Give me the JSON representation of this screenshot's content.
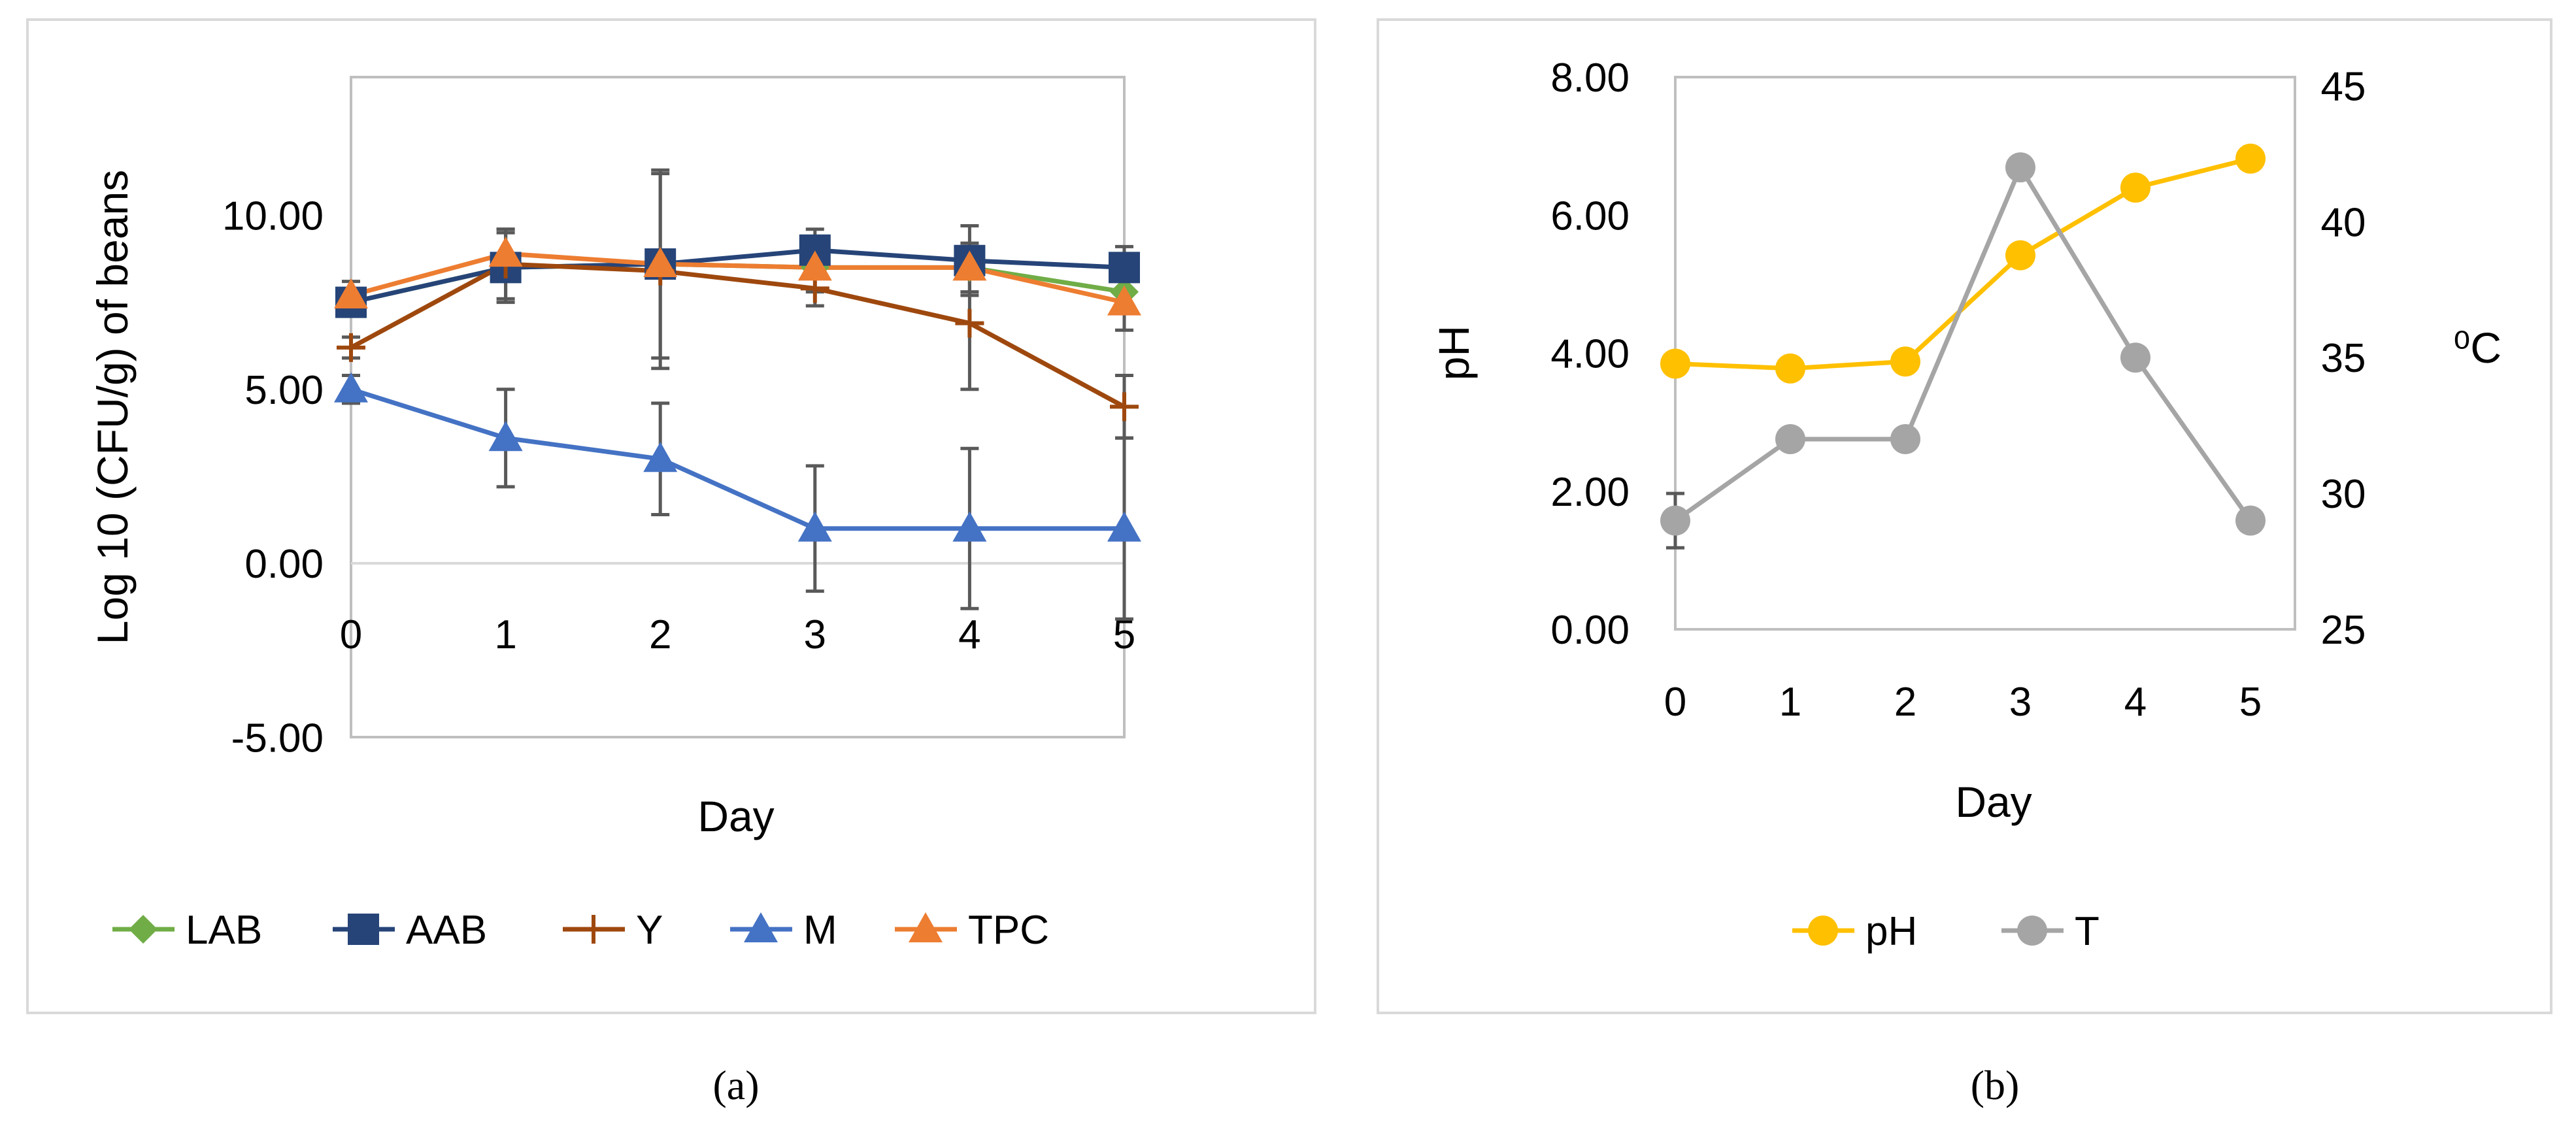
{
  "chart_data": [
    {
      "type": "line",
      "xlabel": "Day",
      "ylabel": "Log 10 (CFU/g) of beans",
      "x": [
        0,
        1,
        2,
        3,
        4,
        5
      ],
      "xticks": [
        "0",
        "1",
        "2",
        "3",
        "4",
        "5"
      ],
      "ylim": [
        -5,
        15
      ],
      "yticks": [
        "-5.00",
        "0.00",
        "5.00",
        "10.00"
      ],
      "grid": false,
      "legend": "bottom",
      "caption": "(a)",
      "series": [
        {
          "name": "LAB",
          "color": "#70AD47",
          "marker": "diamond",
          "values": [
            7.5,
            8.5,
            8.6,
            8.5,
            8.5,
            7.8
          ],
          "err": [
            0,
            0,
            0,
            0,
            0,
            0
          ]
        },
        {
          "name": "AAB",
          "color": "#264478",
          "marker": "square",
          "values": [
            7.5,
            8.5,
            8.6,
            9.0,
            8.7,
            8.5
          ],
          "err": [
            0.3,
            1.0,
            0.4,
            0.6,
            1.0,
            0.6
          ]
        },
        {
          "name": "Y",
          "color": "#9E480E",
          "marker": "plus",
          "values": [
            6.2,
            8.6,
            8.4,
            7.9,
            6.9,
            4.5
          ],
          "err": [
            0.3,
            1.0,
            2.8,
            0.5,
            1.9,
            0.9
          ]
        },
        {
          "name": "M",
          "color": "#4472C4",
          "marker": "triangle",
          "values": [
            5.0,
            3.6,
            3.0,
            1.0,
            1.0,
            1.0
          ],
          "err": [
            0.4,
            1.4,
            1.6,
            1.8,
            2.3,
            2.6
          ]
        },
        {
          "name": "TPC",
          "color": "#ED7D31",
          "marker": "triangle",
          "values": [
            7.7,
            8.9,
            8.6,
            8.5,
            8.5,
            7.5
          ],
          "err": [
            0.4,
            0.7,
            2.7,
            0.7,
            0.7,
            0.8
          ]
        }
      ]
    },
    {
      "type": "line",
      "xlabel": "Day",
      "ylabel": "pH",
      "y2label": "⁰C",
      "x": [
        0,
        1,
        2,
        3,
        4,
        5
      ],
      "xticks": [
        "0",
        "1",
        "2",
        "3",
        "4",
        "5"
      ],
      "ylim": [
        0,
        8
      ],
      "yticks": [
        "0.00",
        "2.00",
        "4.00",
        "6.00",
        "8.00"
      ],
      "y2lim": [
        25,
        45
      ],
      "y2ticks": [
        "25",
        "30",
        "35",
        "40",
        "45"
      ],
      "grid": false,
      "legend": "bottom",
      "caption": "(b)",
      "series": [
        {
          "name": "pH",
          "color": "#FFC000",
          "marker": "circle",
          "axis": "left",
          "values": [
            3.85,
            3.78,
            3.88,
            5.42,
            6.4,
            6.82
          ]
        },
        {
          "name": "T",
          "color": "#A5A5A5",
          "marker": "circle",
          "axis": "right",
          "values": [
            29,
            32,
            32,
            42,
            35,
            29
          ],
          "err": [
            1,
            0,
            0,
            0,
            0,
            0
          ]
        }
      ]
    }
  ]
}
